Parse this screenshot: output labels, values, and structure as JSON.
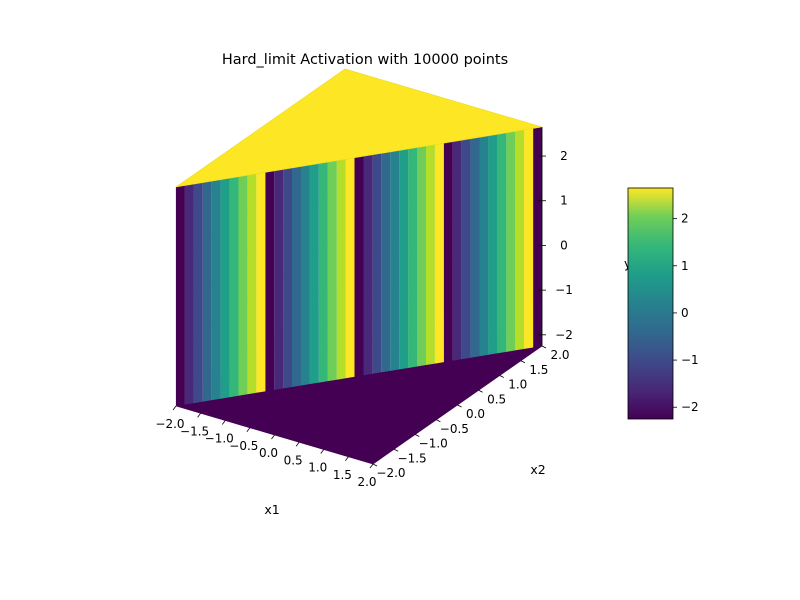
{
  "chart_data": {
    "type": "surface3d",
    "title": "Hard_limit Activation with 10000 points",
    "xlabel": "x1",
    "ylabel": "x2",
    "zlabel": "y",
    "xlim": [
      -2.0,
      2.0
    ],
    "ylim": [
      -2.0,
      2.0
    ],
    "zlim": [
      -2.25,
      2.65
    ],
    "x_ticks": [
      -2.0,
      -1.5,
      -1.0,
      -0.5,
      0.0,
      0.5,
      1.0,
      1.5,
      2.0
    ],
    "y_ticks": [
      -2.0,
      -1.5,
      -1.0,
      -0.5,
      0.0,
      0.5,
      1.0,
      1.5,
      2.0
    ],
    "z_ticks": [
      -2,
      -1,
      0,
      1,
      2
    ],
    "x_tick_labels": [
      "−2.0",
      "−1.5",
      "−1.0",
      "−0.5",
      "0.0",
      "0.5",
      "1.0",
      "1.5",
      "2.0"
    ],
    "y_tick_labels": [
      "−2.0",
      "−1.5",
      "−1.0",
      "−0.5",
      "0.0",
      "0.5",
      "1.0",
      "1.5",
      "2.0"
    ],
    "z_tick_labels": [
      "−2",
      "−1",
      "0",
      "1",
      "2"
    ],
    "points": 10000,
    "grid_resolution": [
      100,
      100
    ],
    "low_value": -2.25,
    "high_value": 2.65,
    "grid": true,
    "colormap": "viridis",
    "colorbar": {
      "range": [
        -2.25,
        2.65
      ],
      "ticks": [
        -2,
        -1,
        0,
        1,
        2
      ],
      "tick_labels": [
        "−2",
        "−1",
        "0",
        "1",
        "2"
      ]
    }
  },
  "colors": {
    "pane_light": "#f2f2f2",
    "pane_mid": "#e6e6e6",
    "pane_dark": "#ebebeb",
    "grid": "#c8c8c8",
    "low": "#440154",
    "high": "#fde725"
  }
}
